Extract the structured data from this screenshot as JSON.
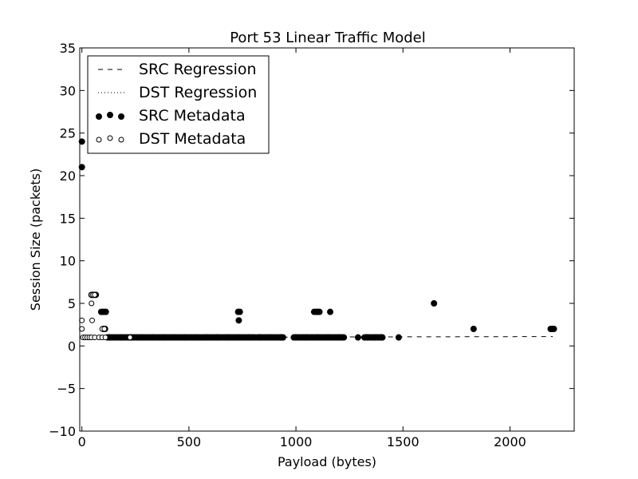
{
  "chart_data": {
    "type": "scatter",
    "title": "Port 53 Linear Traffic Model",
    "xlabel": "Payload (bytes)",
    "ylabel": "Session Size (packets)",
    "xlim": [
      -10,
      2300
    ],
    "ylim": [
      -10,
      35
    ],
    "x_ticks": [
      0,
      500,
      1000,
      1500,
      2000
    ],
    "y_ticks": [
      -10,
      -5,
      0,
      5,
      10,
      15,
      20,
      25,
      30,
      35
    ],
    "x_tick_labels": [
      "0",
      "500",
      "1000",
      "1500",
      "2000"
    ],
    "y_tick_labels": [
      "−10",
      "−5",
      "0",
      "5",
      "10",
      "15",
      "20",
      "25",
      "30",
      "35"
    ],
    "grid": false,
    "legend": {
      "placement": "upper-left",
      "entries": [
        "SRC Regression",
        "DST Regression",
        "SRC Metadata",
        "DST Metadata"
      ]
    },
    "series": [
      {
        "name": "SRC Regression",
        "kind": "line",
        "style": "dashed",
        "x": [
          0,
          2200
        ],
        "y": [
          1.0,
          1.1
        ]
      },
      {
        "name": "DST Regression",
        "kind": "line",
        "style": "dotted",
        "x": [
          0,
          120
        ],
        "y": [
          1.0,
          1.0
        ]
      },
      {
        "name": "SRC Metadata",
        "kind": "scatter",
        "marker": "filled-circle",
        "points": [
          [
            0,
            24
          ],
          [
            0,
            21
          ],
          [
            45,
            6
          ],
          [
            50,
            6
          ],
          [
            58,
            6
          ],
          [
            65,
            6
          ],
          [
            90,
            4
          ],
          [
            98,
            4
          ],
          [
            105,
            4
          ],
          [
            112,
            4
          ],
          [
            100,
            2
          ],
          [
            108,
            2
          ],
          [
            730,
            4
          ],
          [
            738,
            4
          ],
          [
            733,
            3
          ],
          [
            1085,
            4
          ],
          [
            1095,
            4
          ],
          [
            1102,
            4
          ],
          [
            1110,
            4
          ],
          [
            1160,
            4
          ],
          [
            1645,
            5
          ],
          [
            1830,
            2
          ],
          [
            2190,
            2
          ],
          [
            2198,
            2
          ],
          [
            2205,
            2
          ],
          [
            1480,
            1
          ],
          [
            130,
            1
          ],
          [
            180,
            1
          ],
          [
            230,
            1
          ],
          [
            280,
            1
          ],
          [
            330,
            1
          ],
          [
            380,
            1
          ],
          [
            430,
            1
          ],
          [
            480,
            1
          ],
          [
            530,
            1
          ],
          [
            580,
            1
          ],
          [
            630,
            1
          ],
          [
            680,
            1
          ],
          [
            730,
            1
          ],
          [
            780,
            1
          ],
          [
            830,
            1
          ],
          [
            880,
            1
          ],
          [
            930,
            1
          ],
          [
            1000,
            1
          ],
          [
            1050,
            1
          ],
          [
            1100,
            1
          ],
          [
            1150,
            1
          ],
          [
            1200,
            1
          ],
          [
            1290,
            1
          ],
          [
            1330,
            1
          ],
          [
            1370,
            1
          ],
          [
            1400,
            1
          ]
        ],
        "dense_ranges": [
          [
            120,
            810
          ],
          [
            820,
            940
          ],
          [
            990,
            1225
          ],
          [
            1320,
            1405
          ]
        ],
        "dense_value": 1
      },
      {
        "name": "DST Metadata",
        "kind": "scatter",
        "marker": "open-circle",
        "points": [
          [
            0,
            3
          ],
          [
            0,
            2
          ],
          [
            5,
            1
          ],
          [
            15,
            1
          ],
          [
            25,
            1
          ],
          [
            35,
            1
          ],
          [
            45,
            1
          ],
          [
            60,
            1
          ],
          [
            80,
            1
          ],
          [
            95,
            1
          ],
          [
            110,
            1
          ],
          [
            45,
            6
          ],
          [
            52,
            6
          ],
          [
            60,
            6
          ],
          [
            45,
            5
          ],
          [
            48,
            3
          ],
          [
            95,
            2
          ],
          [
            105,
            2
          ],
          [
            225,
            1
          ]
        ]
      }
    ]
  }
}
